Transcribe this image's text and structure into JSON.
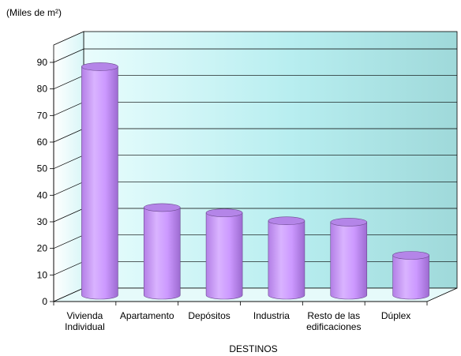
{
  "chart_data": {
    "type": "bar",
    "unit_label": "(Miles de m²)",
    "xlabel": "DESTINOS",
    "categories": [
      [
        "Vivienda",
        "Individual"
      ],
      [
        "Apartamento"
      ],
      [
        "Depósitos"
      ],
      [
        "Industria"
      ],
      [
        "Resto de las",
        "edificaciones"
      ],
      [
        "Dúplex"
      ]
    ],
    "values": [
      86,
      33,
      31,
      28,
      27.5,
      15
    ],
    "ylim": [
      0,
      90
    ],
    "yticks": [
      0,
      10,
      20,
      30,
      40,
      50,
      60,
      70,
      80,
      90
    ],
    "grid": true,
    "three_d": true,
    "colors": {
      "bar": "#cc99ff",
      "wall": "#9fe8ea",
      "floor": "#dff8f8"
    }
  }
}
